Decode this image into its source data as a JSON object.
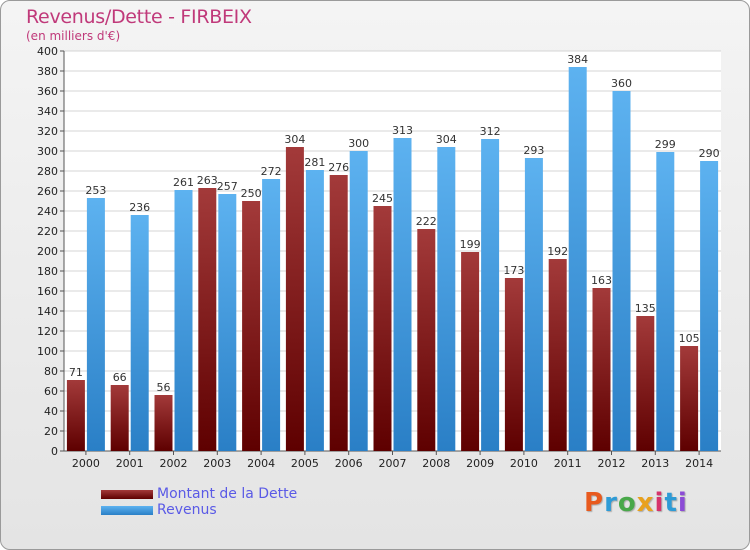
{
  "title": "Revenus/Dette - FIRBEIX",
  "subtitle": "(en milliers d'€)",
  "logo": {
    "text": "Proxiti",
    "colors": [
      "#e85a1e",
      "#2e9bd6",
      "#49a84a",
      "#e8a11e",
      "#d6336c",
      "#2e9bd6",
      "#8c4bd6"
    ]
  },
  "chart_data": {
    "type": "bar",
    "categories": [
      "2000",
      "2001",
      "2002",
      "2003",
      "2004",
      "2005",
      "2006",
      "2007",
      "2008",
      "2009",
      "2010",
      "2011",
      "2012",
      "2013",
      "2014"
    ],
    "series": [
      {
        "name": "Montant de la Dette",
        "color": "#8b1a1a",
        "values": [
          71,
          66,
          56,
          263,
          250,
          304,
          276,
          245,
          222,
          199,
          173,
          192,
          163,
          135,
          105
        ]
      },
      {
        "name": "Revenus",
        "color": "#3c9be3",
        "values": [
          253,
          236,
          261,
          257,
          272,
          281,
          300,
          313,
          304,
          312,
          293,
          384,
          360,
          299,
          290
        ]
      }
    ],
    "ylim": [
      0,
      400
    ],
    "yticks": [
      0,
      20,
      40,
      60,
      80,
      100,
      120,
      140,
      160,
      180,
      200,
      220,
      240,
      260,
      280,
      300,
      320,
      340,
      360,
      380,
      400
    ],
    "grid": true,
    "legend": "bottom-left"
  }
}
